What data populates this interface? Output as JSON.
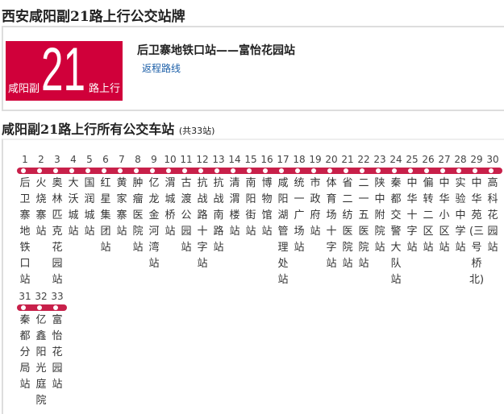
{
  "page_title": "西安咸阳副21路上行公交站牌",
  "badge": {
    "prefix": "咸阳副",
    "number": "21",
    "suffix": "路上行",
    "color": "#d0003a"
  },
  "route_endpoints": "后卫寨地铁口站——富怡花园站",
  "return_link": "返程路线",
  "stations_title": "咸阳副21路上行所有公交车站",
  "stations_count": "(共33站)",
  "line_color": "#c8204a",
  "stations": [
    "后卫寨地铁口站",
    "火烧寨站",
    "奥林匹克花园站",
    "大沃城站",
    "国润城站",
    "红星集团站",
    "黄家寨站",
    "肿瘤医院站",
    "亿龙金河湾站",
    "渭城桥站",
    "古渡公园站",
    "抗战路十字站",
    "抗战南路站",
    "清渭楼站",
    "南阳街站",
    "博物馆站",
    "咸阳湖管理处站",
    "统一广场站",
    "市政府站",
    "体育场十字站",
    "省二纺医院站",
    "二一五医院站",
    "陕中附院站",
    "秦都交警大队站",
    "中华十字站",
    "偏转二区站",
    "中华小区站",
    "实验中学站",
    "中华苑(三号桥北)",
    "高科花园站",
    "秦都分局站",
    "亿鑫阳光庭院",
    "富怡花园站"
  ]
}
